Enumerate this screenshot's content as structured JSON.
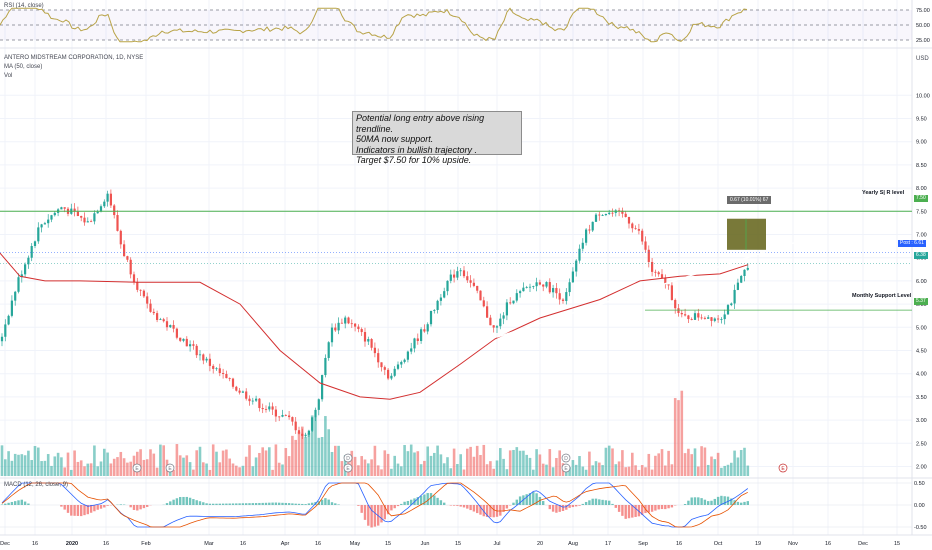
{
  "panes": {
    "rsi": {
      "title": "RSI (14, close)",
      "levels": [
        "75.00",
        "50.00",
        "25.00"
      ]
    },
    "main": {
      "title": "ANTERO MIDSTREAM CORPORATION, 1D, NYSE",
      "ma_label": "MA (50, close)",
      "vol_label": "Vol",
      "currency": "USD"
    },
    "macd": {
      "title": "MACD (12, 26, close, 9)",
      "levels": [
        "0.50",
        "0.00",
        "-0.50"
      ]
    }
  },
  "annotation": {
    "line1": "Potential long entry above rising trendline.",
    "line2": "50MA now support.",
    "line3": "Indicators in bullish trajectory .",
    "line4": "Target $7.50 for 10% upside."
  },
  "levels": {
    "yearly": {
      "label": "Yearly  S| R level",
      "value": 7.5
    },
    "monthly": {
      "label": "Monthly Support Level",
      "value": 5.37
    }
  },
  "price_tags": {
    "yearly": "7.50",
    "post": "Post : 6.61",
    "last": "6.38",
    "monthly": "5.37"
  },
  "measure_label": "0.67 (10.01%) 67",
  "price_axis_ticks": [
    "10.00",
    "9.50",
    "9.00",
    "8.50",
    "8.00",
    "7.50",
    "7.00",
    "6.50",
    "6.00",
    "5.50",
    "5.00",
    "4.50",
    "4.00",
    "3.50",
    "3.00",
    "2.50",
    "2.00"
  ],
  "time_axis_ticks": [
    "Dec",
    "16",
    "2020",
    "16",
    "Feb",
    "Mar",
    "16",
    "Apr",
    "16",
    "May",
    "15",
    "Jun",
    "15",
    "Jul",
    "20",
    "Aug",
    "17",
    "Sep",
    "16",
    "Oct",
    "19",
    "Nov",
    "16",
    "Dec",
    "15"
  ],
  "colors": {
    "up": "#26a69a",
    "down": "#ef5350",
    "ma": "#d32f2f",
    "rsi": "#b8a347",
    "level_line": "#4caf50",
    "macd_line": "#2962ff",
    "signal_line": "#e65100",
    "trendline": "#ffffff"
  },
  "chart_data": {
    "type": "candlestick",
    "symbol": "ANTERO MIDSTREAM CORPORATION",
    "interval": "1D",
    "exchange": "NYSE",
    "ylim": [
      1.8,
      10.4
    ],
    "price_path": [
      [
        0,
        4.7
      ],
      [
        18,
        6.0
      ],
      [
        40,
        7.2
      ],
      [
        62,
        7.6
      ],
      [
        88,
        7.25
      ],
      [
        108,
        7.9
      ],
      [
        122,
        6.7
      ],
      [
        135,
        6.0
      ],
      [
        148,
        5.4
      ],
      [
        175,
        4.9
      ],
      [
        205,
        4.3
      ],
      [
        235,
        3.7
      ],
      [
        262,
        3.3
      ],
      [
        290,
        3.0
      ],
      [
        305,
        2.6
      ],
      [
        318,
        3.4
      ],
      [
        330,
        4.9
      ],
      [
        345,
        5.2
      ],
      [
        368,
        4.7
      ],
      [
        390,
        3.9
      ],
      [
        405,
        4.4
      ],
      [
        425,
        5.0
      ],
      [
        445,
        5.9
      ],
      [
        460,
        6.3
      ],
      [
        475,
        5.8
      ],
      [
        495,
        4.9
      ],
      [
        510,
        5.6
      ],
      [
        540,
        6.0
      ],
      [
        565,
        5.6
      ],
      [
        585,
        7.0
      ],
      [
        600,
        7.5
      ],
      [
        625,
        7.4
      ],
      [
        640,
        7.0
      ],
      [
        652,
        6.2
      ],
      [
        668,
        5.9
      ],
      [
        680,
        5.2
      ],
      [
        700,
        5.25
      ],
      [
        720,
        5.2
      ],
      [
        732,
        5.6
      ],
      [
        748,
        6.38
      ]
    ],
    "moving_average": {
      "name": "MA (50, close)",
      "path": [
        [
          0,
          6.6
        ],
        [
          20,
          6.1
        ],
        [
          45,
          6.0
        ],
        [
          80,
          6.0
        ],
        [
          140,
          5.97
        ],
        [
          200,
          5.97
        ],
        [
          240,
          5.5
        ],
        [
          280,
          4.5
        ],
        [
          320,
          3.8
        ],
        [
          360,
          3.5
        ],
        [
          390,
          3.45
        ],
        [
          420,
          3.6
        ],
        [
          460,
          4.2
        ],
        [
          495,
          4.75
        ],
        [
          540,
          5.2
        ],
        [
          600,
          5.6
        ],
        [
          640,
          6.0
        ],
        [
          680,
          6.1
        ],
        [
          720,
          6.15
        ],
        [
          748,
          6.35
        ]
      ]
    },
    "horizontal_levels": [
      {
        "name": "Yearly  S| R level",
        "value": 7.5
      },
      {
        "name": "Monthly Support Level",
        "value": 5.37
      }
    ],
    "trendline": {
      "from": [
        497,
        4.79
      ],
      "to": [
        813,
        6.95
      ]
    },
    "rsi": {
      "levels": [
        75,
        50,
        25
      ]
    },
    "macd": {
      "levels": [
        0.5,
        0.0,
        -0.5
      ]
    }
  }
}
